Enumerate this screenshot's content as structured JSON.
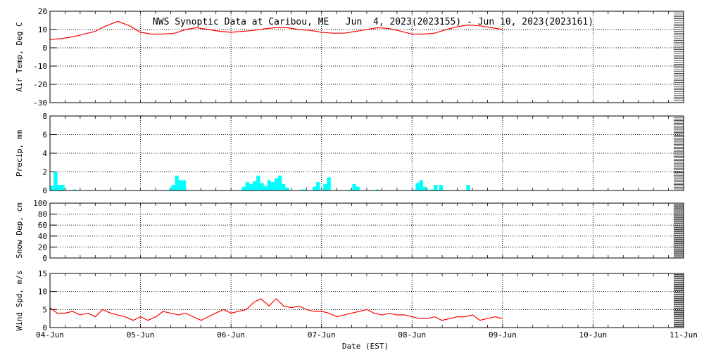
{
  "title": "NWS Synoptic Data at Caribou, ME   Jun  4, 2023(2023155) - Jun 10, 2023(2023161)",
  "xlabel": "Date (EST)",
  "x_ticks": [
    "04-Jun",
    "05-Jun",
    "06-Jun",
    "07-Jun",
    "08-Jun",
    "09-Jun",
    "10-Jun",
    "11-Jun"
  ],
  "colors": {
    "line": "#ff0000",
    "bar": "#00ffff",
    "axis": "#000000"
  },
  "chart_data": [
    {
      "type": "line",
      "ylabel": "Air Temp, Deg C",
      "ylim": [
        -30,
        20
      ],
      "yticks": [
        -30,
        -20,
        -10,
        0,
        10,
        20
      ],
      "x_unit": "days since 04-Jun 00:00",
      "grid": true,
      "x": [
        0,
        0.12,
        0.25,
        0.38,
        0.5,
        0.62,
        0.75,
        0.88,
        1.0,
        1.12,
        1.25,
        1.38,
        1.5,
        1.62,
        1.75,
        1.88,
        2.0,
        2.12,
        2.25,
        2.38,
        2.5,
        2.62,
        2.75,
        2.88,
        3.0,
        3.12,
        3.25,
        3.38,
        3.5,
        3.62,
        3.75,
        3.88,
        4.0,
        4.12,
        4.25,
        4.38,
        4.5,
        4.62,
        4.75,
        4.88,
        5.0
      ],
      "values": [
        4.5,
        5,
        6,
        7.5,
        9,
        12,
        14.5,
        12,
        8.5,
        7.5,
        7.5,
        8,
        10,
        11,
        10,
        9,
        8.5,
        9,
        9.5,
        10.5,
        11,
        11,
        10,
        9.5,
        8.5,
        8,
        8,
        9,
        10,
        11,
        10.5,
        9,
        7.5,
        7.5,
        8,
        10,
        11.5,
        12.5,
        12,
        11,
        10
      ]
    },
    {
      "type": "bar",
      "ylabel": "Precip, mm",
      "ylim": [
        0,
        8
      ],
      "yticks": [
        0,
        2,
        4,
        6,
        8
      ],
      "x_unit": "days since 04-Jun 00:00",
      "grid": true,
      "bar_width_days": 0.0417,
      "x": [
        0.0,
        0.04,
        0.08,
        0.12,
        0.25,
        1.3,
        1.34,
        1.38,
        1.42,
        1.46,
        2.12,
        2.16,
        2.2,
        2.24,
        2.28,
        2.32,
        2.36,
        2.4,
        2.44,
        2.48,
        2.52,
        2.56,
        2.6,
        2.76,
        2.8,
        2.9,
        2.94,
        2.98,
        3.02,
        3.06,
        3.3,
        3.34,
        3.38,
        3.6,
        4.0,
        4.04,
        4.08,
        4.12,
        4.2,
        4.24,
        4.3,
        4.6
      ],
      "values": [
        0.5,
        2.0,
        0.6,
        0.6,
        0.1,
        0.1,
        0.6,
        1.6,
        1.1,
        1.1,
        0.4,
        0.9,
        0.7,
        1.0,
        1.6,
        0.8,
        0.5,
        1.1,
        0.9,
        1.3,
        1.6,
        0.7,
        0.3,
        0.1,
        0.1,
        0.4,
        0.9,
        0.1,
        0.7,
        1.4,
        0.1,
        0.7,
        0.4,
        0.1,
        0.1,
        0.8,
        1.1,
        0.4,
        0.1,
        0.6,
        0.6,
        0.6
      ]
    },
    {
      "type": "line",
      "ylabel": "Snow Dep, cm",
      "ylim": [
        0,
        100
      ],
      "yticks": [
        0,
        20,
        40,
        60,
        80,
        100
      ],
      "grid": true,
      "values": []
    },
    {
      "type": "line",
      "ylabel": "Wind Spd, m/s",
      "ylim": [
        0,
        15
      ],
      "yticks": [
        0,
        5,
        10,
        15
      ],
      "x_unit": "days since 04-Jun 00:00",
      "grid": true,
      "x": [
        0,
        0.08,
        0.17,
        0.25,
        0.33,
        0.42,
        0.5,
        0.58,
        0.67,
        0.75,
        0.83,
        0.92,
        1.0,
        1.08,
        1.17,
        1.25,
        1.33,
        1.42,
        1.5,
        1.58,
        1.67,
        1.75,
        1.83,
        1.92,
        2.0,
        2.08,
        2.17,
        2.25,
        2.33,
        2.42,
        2.5,
        2.58,
        2.67,
        2.75,
        2.83,
        2.92,
        3.0,
        3.08,
        3.17,
        3.25,
        3.33,
        3.42,
        3.5,
        3.58,
        3.67,
        3.75,
        3.83,
        3.92,
        4.0,
        4.08,
        4.17,
        4.25,
        4.33,
        4.42,
        4.5,
        4.58,
        4.67,
        4.75,
        4.83,
        4.92,
        5.0
      ],
      "values": [
        5.5,
        4,
        4,
        4.5,
        3.5,
        4,
        3,
        5,
        4,
        3.5,
        3,
        2,
        3,
        2,
        3,
        4.5,
        4,
        3.5,
        4,
        3,
        2,
        3,
        4,
        5,
        4,
        4.5,
        5,
        7,
        8,
        6,
        8,
        6,
        5.5,
        6,
        5,
        4.5,
        4.5,
        4,
        3,
        3.5,
        4,
        4.5,
        5,
        4,
        3.5,
        4,
        3.5,
        3.5,
        3,
        2.5,
        2.5,
        3,
        2,
        2.5,
        3,
        3,
        3.5,
        2,
        2.5,
        3,
        2.5
      ]
    }
  ]
}
